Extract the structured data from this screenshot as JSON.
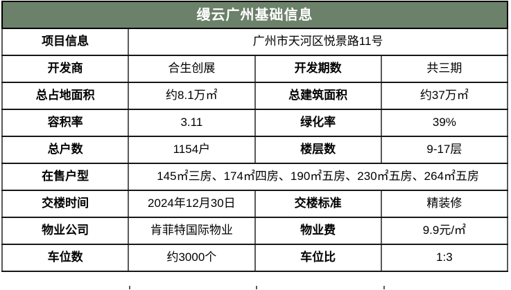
{
  "title": "缦云广州基础信息",
  "theme": {
    "header_bg": "#6B8169",
    "header_text_color": "#FFFFFF",
    "horizontal_border_color": "#161616",
    "vertical_border_color": "#595959",
    "cell_bg": "#FFFFFF",
    "text_color": "#000000"
  },
  "chart_data": {
    "type": "table",
    "title": "缦云广州基础信息",
    "layout": "4 equal columns; rows 1 and 6 merge columns 2-4; all cells centered; labels bold",
    "rows": [
      [
        "项目信息",
        "广州市天河区悦景路11号"
      ],
      [
        "开发商",
        "合生创展",
        "开发期数",
        "共三期"
      ],
      [
        "总占地面积",
        "约8.1万㎡",
        "总建筑面积",
        "约37万㎡"
      ],
      [
        "容积率",
        "3.11",
        "绿化率",
        "39%"
      ],
      [
        "总户数",
        "1154户",
        "楼层数",
        "9-17层"
      ],
      [
        "在售户型",
        "145㎡三房、174㎡四房、190㎡五房、230㎡五房、264㎡五房"
      ],
      [
        "交楼时间",
        "2024年12月30日",
        "交楼标准",
        "精装修"
      ],
      [
        "物业公司",
        "肯菲特国际物业",
        "物业费",
        "9.9元/㎡"
      ],
      [
        "车位数",
        "约3000个",
        "车位比",
        "1:3"
      ]
    ]
  }
}
